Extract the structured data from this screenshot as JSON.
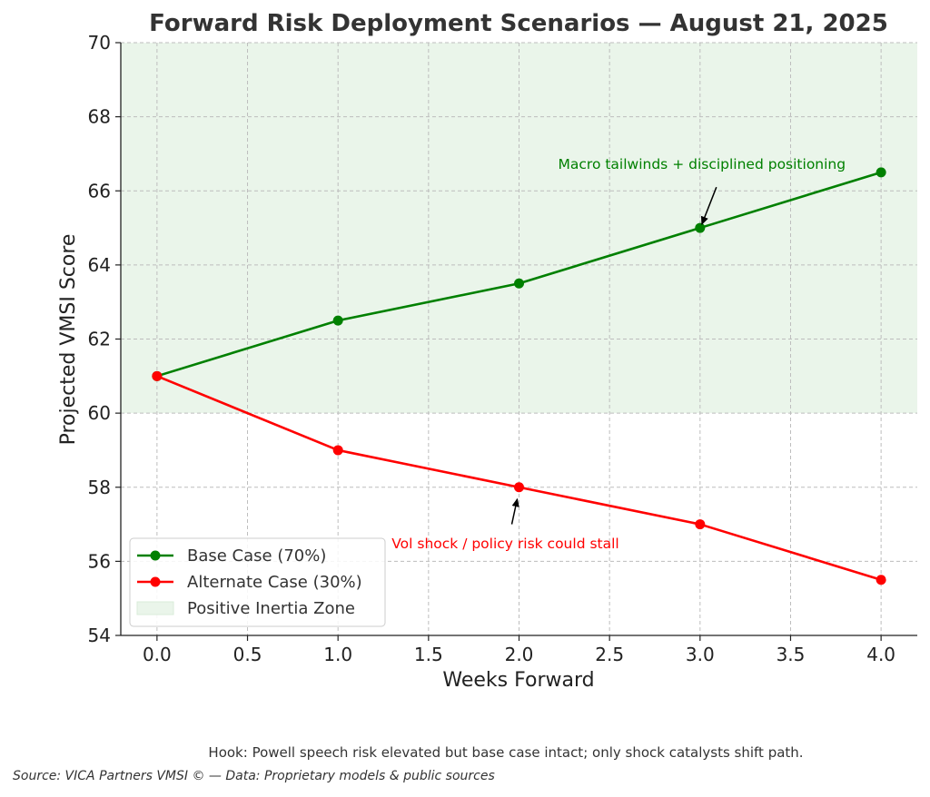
{
  "chart_data": {
    "type": "line",
    "title": "Forward Risk Deployment Scenarios — August 21, 2025",
    "xlabel": "Weeks Forward",
    "ylabel": "Projected VMSI Score",
    "xlim": [
      -0.2,
      4.2
    ],
    "ylim": [
      54,
      70
    ],
    "xticks": [
      "0.0",
      "0.5",
      "1.0",
      "1.5",
      "2.0",
      "2.5",
      "3.0",
      "3.5",
      "4.0"
    ],
    "yticks": [
      "54",
      "56",
      "58",
      "60",
      "62",
      "64",
      "66",
      "68",
      "70"
    ],
    "grid": true,
    "legend_position": "lower-left",
    "series": [
      {
        "name": "Base Case (70%)",
        "color": "#008000",
        "x": [
          0,
          1,
          2,
          3,
          4
        ],
        "y": [
          61,
          62.5,
          63.5,
          65,
          66.5
        ]
      },
      {
        "name": "Alternate Case (30%)",
        "color": "#ff0000",
        "x": [
          0,
          1,
          2,
          3,
          4
        ],
        "y": [
          61,
          59,
          58,
          57,
          55.5
        ]
      }
    ],
    "zone": {
      "name": "Positive Inertia Zone",
      "y_from": 60,
      "y_to": 70,
      "color": "#eaf5ea"
    },
    "annotations": [
      {
        "text": "Macro tailwinds + disciplined positioning",
        "color": "#008000",
        "point_x": 3,
        "point_y": 65
      },
      {
        "text": "Vol shock / policy risk could stall",
        "color": "#ff0000",
        "point_x": 2,
        "point_y": 58
      }
    ]
  },
  "footer": {
    "hook": "Hook: Powell speech risk elevated but base case intact; only shock catalysts shift path.",
    "source": "Source: VICA Partners VMSI © — Data: Proprietary models & public sources"
  }
}
